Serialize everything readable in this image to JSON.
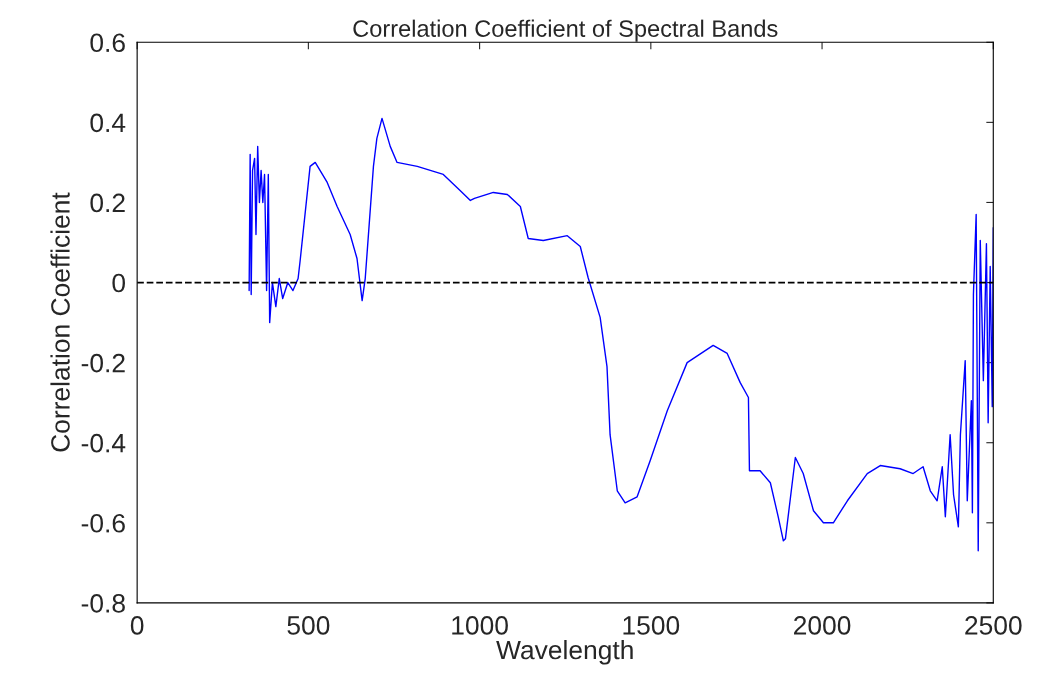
{
  "chart_data": {
    "type": "line",
    "title": "Correlation Coefficient of Spectral Bands",
    "xlabel": "Wavelength",
    "ylabel": "Correlation Coefficient",
    "xlim": [
      0,
      2500
    ],
    "xticks": [
      0,
      500,
      1000,
      1500,
      2000,
      2500
    ],
    "ylim": [
      -0.8,
      0.6
    ],
    "yticks": [
      -0.8,
      -0.6,
      -0.4,
      -0.2,
      0,
      0.2,
      0.4,
      0.6
    ],
    "grid": false,
    "ref_lines": [
      {
        "axis": "y",
        "value": 0,
        "color": "#000000",
        "line_style": "dashed"
      }
    ],
    "series": [
      {
        "color": "#0000ff",
        "x": [
          327,
          330,
          333,
          337,
          343,
          347,
          352,
          357,
          362,
          367,
          372,
          378,
          383,
          387,
          395,
          405,
          415,
          425,
          440,
          455,
          470,
          476,
          505,
          520,
          555,
          584,
          622,
          642,
          657,
          666,
          690,
          700,
          715,
          739,
          759,
          818,
          894,
          943,
          973,
          985,
          1040,
          1081,
          1119,
          1142,
          1186,
          1256,
          1294,
          1317,
          1352,
          1372,
          1381,
          1402,
          1425,
          1460,
          1498,
          1548,
          1606,
          1682,
          1723,
          1761,
          1785,
          1788,
          1819,
          1849,
          1872,
          1887,
          1893,
          1922,
          1945,
          1975,
          2004,
          2033,
          2074,
          2132,
          2170,
          2228,
          2266,
          2295,
          2316,
          2336,
          2351,
          2360,
          2374,
          2384,
          2398,
          2404,
          2418,
          2424,
          2436,
          2439,
          2442,
          2450,
          2456,
          2462,
          2471,
          2480,
          2485,
          2491,
          2497,
          2500
        ],
        "values": [
          -0.02,
          0.32,
          -0.03,
          0.28,
          0.31,
          0.12,
          0.34,
          0.2,
          0.28,
          0.2,
          0.27,
          -0.02,
          0.27,
          -0.1,
          0.0,
          -0.06,
          0.01,
          -0.04,
          0.0,
          -0.02,
          0.01,
          0.055,
          0.29,
          0.3,
          0.25,
          0.19,
          0.12,
          0.06,
          -0.045,
          0.01,
          0.29,
          0.36,
          0.41,
          0.34,
          0.3,
          0.29,
          0.27,
          0.23,
          0.205,
          0.21,
          0.225,
          0.22,
          0.19,
          0.11,
          0.105,
          0.117,
          0.09,
          0.012,
          -0.087,
          -0.21,
          -0.38,
          -0.52,
          -0.55,
          -0.535,
          -0.445,
          -0.32,
          -0.2,
          -0.157,
          -0.177,
          -0.25,
          -0.287,
          -0.47,
          -0.47,
          -0.5,
          -0.585,
          -0.645,
          -0.64,
          -0.437,
          -0.477,
          -0.57,
          -0.6,
          -0.6,
          -0.545,
          -0.477,
          -0.457,
          -0.465,
          -0.477,
          -0.46,
          -0.52,
          -0.545,
          -0.46,
          -0.585,
          -0.38,
          -0.53,
          -0.61,
          -0.38,
          -0.195,
          -0.545,
          -0.295,
          -0.575,
          -0.03,
          0.17,
          -0.67,
          0.105,
          -0.245,
          0.097,
          -0.35,
          0.04,
          -0.31,
          0.137
        ]
      }
    ]
  }
}
